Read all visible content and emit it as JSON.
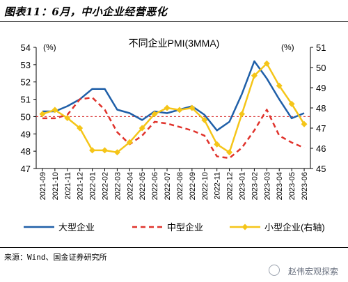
{
  "figure": {
    "title": "图表11：6月，中小企业经营恶化",
    "source": "来源：Wind、国金证券研究所",
    "watermark": "赵伟宏观探索"
  },
  "chart_data": {
    "type": "line",
    "title": "不同企业PMI(3MMA)",
    "left_unit": "(%)",
    "right_unit": "(%)",
    "ylim_left": [
      47,
      54
    ],
    "ylim_right": [
      45,
      51
    ],
    "reference_line": 50,
    "reference_color": "#d62728",
    "left_ticks": [
      47,
      48,
      49,
      50,
      51,
      52,
      53,
      54
    ],
    "right_ticks": [
      45,
      46,
      47,
      48,
      49,
      50,
      51
    ],
    "categories": [
      "2021-09",
      "2021-10",
      "2021-11",
      "2021-12",
      "2022-01",
      "2022-02",
      "2022-03",
      "2022-04",
      "2022-05",
      "2022-06",
      "2022-07",
      "2022-08",
      "2022-09",
      "2022-10",
      "2022-11",
      "2022-12",
      "2023-01",
      "2023-02",
      "2023-03",
      "2023-04",
      "2023-05",
      "2023-06"
    ],
    "series": [
      {
        "name": "大型企业",
        "axis": "left",
        "color": "#1f5fa8",
        "dash": "solid",
        "values": [
          50.3,
          50.3,
          50.6,
          51.0,
          51.6,
          51.6,
          50.4,
          50.2,
          49.8,
          50.3,
          50.2,
          50.4,
          50.6,
          50.1,
          49.2,
          49.7,
          51.3,
          53.2,
          52.2,
          51.0,
          49.9,
          50.2
        ]
      },
      {
        "name": "中型企业",
        "axis": "left",
        "color": "#e0332c",
        "dash": "dashed",
        "values": [
          49.9,
          49.9,
          50.1,
          51.0,
          51.1,
          50.4,
          49.1,
          48.4,
          48.9,
          49.7,
          49.6,
          49.4,
          49.2,
          48.9,
          47.7,
          47.6,
          48.2,
          49.2,
          50.4,
          48.9,
          48.5,
          48.2
        ]
      },
      {
        "name": "小型企业(右轴)",
        "axis": "right",
        "color": "#f5c518",
        "dash": "solid",
        "marker": "diamond",
        "values": [
          47.7,
          47.9,
          47.5,
          47.0,
          45.9,
          45.9,
          45.8,
          46.3,
          47.0,
          47.7,
          48.0,
          47.9,
          48.0,
          47.4,
          46.2,
          45.8,
          47.7,
          49.6,
          50.2,
          49.1,
          48.2,
          47.2
        ]
      }
    ]
  }
}
